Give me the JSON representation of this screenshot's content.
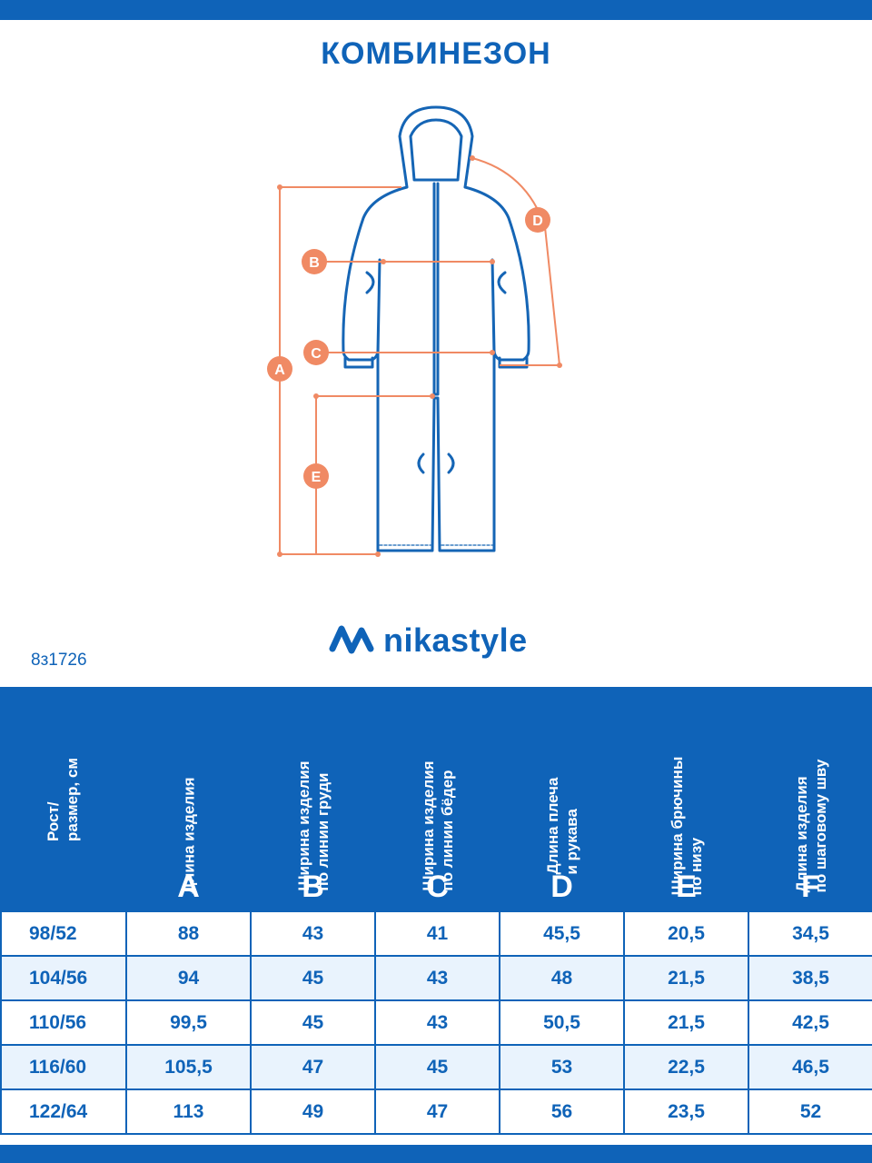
{
  "title": "КОМБИНЕЗОН",
  "diagram_markers": [
    "A",
    "B",
    "C",
    "D",
    "E"
  ],
  "brand": {
    "name": "nikastyle",
    "color": "#0f63b8",
    "logo_icon": "nikastyle-logo-icon"
  },
  "article": "8з1726",
  "colors": {
    "primary": "#0f63b8",
    "measure_lines": "#f08a64",
    "row_alt": "#e9f3fd"
  },
  "table": {
    "headers": [
      {
        "lines": [
          "Рост/",
          "размер, см"
        ],
        "letter": ""
      },
      {
        "lines": [
          "Длина изделия"
        ],
        "letter": "A"
      },
      {
        "lines": [
          "Ширина изделия",
          "по линии груди"
        ],
        "letter": "B"
      },
      {
        "lines": [
          "Ширина изделия",
          "по линии бёдер"
        ],
        "letter": "C"
      },
      {
        "lines": [
          "Длина плеча",
          "и рукава"
        ],
        "letter": "D"
      },
      {
        "lines": [
          "Ширина брючины",
          "по низу"
        ],
        "letter": "E"
      },
      {
        "lines": [
          "Длина изделия",
          "по шаговому шву"
        ],
        "letter": "F"
      }
    ],
    "rows": [
      [
        "98/52",
        "88",
        "43",
        "41",
        "45,5",
        "20,5",
        "34,5"
      ],
      [
        "104/56",
        "94",
        "45",
        "43",
        "48",
        "21,5",
        "38,5"
      ],
      [
        "110/56",
        "99,5",
        "45",
        "43",
        "50,5",
        "21,5",
        "42,5"
      ],
      [
        "116/60",
        "105,5",
        "47",
        "45",
        "53",
        "22,5",
        "46,5"
      ],
      [
        "122/64",
        "113",
        "49",
        "47",
        "56",
        "23,5",
        "52"
      ]
    ]
  }
}
